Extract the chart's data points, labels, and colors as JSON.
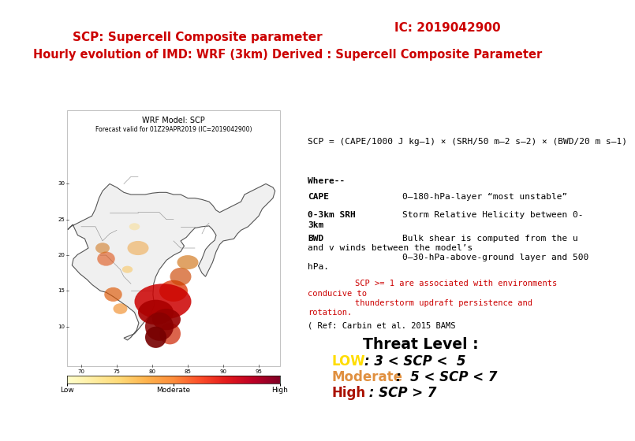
{
  "title1": "SCP: Supercell Composite parameter",
  "title2": "IC: 2019042900",
  "title3": "Hourly evolution of IMD: WRF (3km) Derived : Supercell Composite Parameter",
  "title_color": "#cc0000",
  "bg_color": "#ffffff",
  "formula": "SCP = (CAPE/1000 J kg–1) × (SRH/50 m–2 s–2) × (BWD/20 m s–1)",
  "map_title1": "WRF Model: SCP",
  "map_title2": "Forecast valid for 01Z29APR2019 (IC=2019042900)",
  "where_label": "Where--",
  "cape_label": "CAPE",
  "cape_desc": "0–180-hPa-layer “most unstable”",
  "srh_label": "0-3km SRH",
  "srh_desc": "Storm Relative Helicity between 0-",
  "srh_desc2": "3km",
  "bwd_label": "BWD",
  "bwd_desc1": "Bulk shear is computed from the u",
  "bwd_desc2": "and v winds between the model’s",
  "bwd_desc3": "0–30-hPa-above-ground layer and 500",
  "bwd_desc4": "hPa.",
  "note1": "SCP >= 1 are associated with environments",
  "note2": "conducive to",
  "note3": "thunderstorm updraft persistence and",
  "note4": "rotation.",
  "ref": "( Ref: Carbin et al. 2015 BAMS",
  "threat_level": "Threat Level :",
  "low_label": "LOW",
  "low_range": ": 3 < SCP <  5",
  "low_color": "#ffdd00",
  "moderate_label": "Moderate",
  "moderate_range": ":  5 < SCP < 7",
  "moderate_color": "#e09040",
  "high_label": "High",
  "high_range": " : SCP > 7",
  "high_color": "#aa1100",
  "text_black": "#000000",
  "note_color": "#cc0000"
}
